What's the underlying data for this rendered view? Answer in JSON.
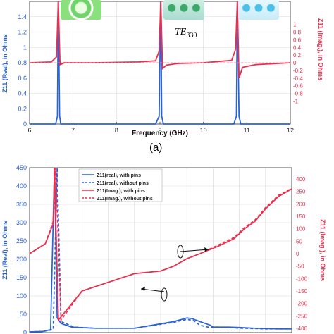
{
  "figure": {
    "panel_label": "(a)",
    "mode_label": "TE",
    "mode_subscript": "330"
  },
  "colors": {
    "blue": "#2a62d9",
    "red": "#e8304e",
    "pink": "#ff8aa6",
    "axis": "#444444",
    "grid": "#d8d8d8"
  },
  "chart_data": [
    {
      "type": "line",
      "xlabel": "Frequency (GHz)",
      "ylabel_left": "Z11 (Real), in Ohms",
      "ylabel_right": "Z11 (Imag.), in Ohms",
      "xlim": [
        6,
        12
      ],
      "ylim_left": [
        0,
        1.6
      ],
      "ylim_right": [
        -1.6,
        1.6
      ],
      "x_ticks": [
        "6",
        "7",
        "8",
        "9",
        "10",
        "11",
        "12"
      ],
      "y_left_ticks": [
        "0",
        "0.2",
        "0.4",
        "0.6",
        "0.8",
        "1",
        "1.2",
        "1.4"
      ],
      "y_right_ticks": [
        "1",
        "0.8",
        "0.6",
        "0.4",
        "0.2",
        "0",
        "-0.2",
        "-0.4",
        "-0.6",
        "-0.8",
        "-1"
      ],
      "series": [
        {
          "color": "blue",
          "axis": "left",
          "x": [
            6.0,
            6.6,
            6.64,
            6.66,
            6.69,
            6.72,
            7.2,
            8.9,
            8.98,
            9.02,
            9.04,
            9.08,
            10.7,
            10.76,
            10.78,
            10.82,
            10.86,
            12.0
          ],
          "y": [
            0.0,
            0.0,
            0.1,
            1.6,
            0.1,
            0.0,
            0.0,
            0.0,
            0.1,
            1.6,
            0.1,
            0.0,
            0.0,
            0.1,
            1.6,
            0.1,
            0.0,
            0.0
          ]
        },
        {
          "color": "red",
          "axis": "right",
          "x": [
            6.0,
            6.5,
            6.62,
            6.66,
            6.7,
            6.8,
            7.0,
            7.5,
            8.5,
            8.9,
            8.98,
            9.02,
            9.06,
            9.15,
            9.4,
            10.0,
            10.65,
            10.74,
            10.78,
            10.82,
            10.9,
            11.2,
            12.0
          ],
          "y": [
            0.0,
            0.02,
            0.15,
            1.6,
            -0.05,
            0.0,
            0.0,
            0.0,
            0.02,
            0.05,
            0.3,
            1.6,
            -0.15,
            -0.06,
            -0.02,
            0.0,
            0.06,
            0.35,
            1.6,
            -0.4,
            -0.12,
            -0.05,
            0.0
          ]
        }
      ]
    },
    {
      "type": "line",
      "ylabel_left": "Z11 (Real), in Ohms",
      "ylabel_right": "Z11 (Imag.), in Ohms",
      "ylim_left": [
        0,
        450
      ],
      "ylim_right": [
        -400,
        450
      ],
      "y_left_ticks": [
        "450",
        "400",
        "350",
        "300",
        "250",
        "200",
        "150",
        "100",
        "50",
        "0"
      ],
      "y_right_ticks": [
        "400",
        "250",
        "200",
        "150",
        "100",
        "50",
        "0",
        "-50",
        "-100",
        "-150",
        "-200",
        "-250",
        "-400"
      ],
      "legend_position": "top-left",
      "legend": [
        {
          "label": "Z11(real), with pins",
          "color": "blue",
          "style": "solid"
        },
        {
          "label": "Z11(real), without pins",
          "color": "blue",
          "style": "dashed"
        },
        {
          "label": "Z11(Imag.), with pins",
          "color": "red",
          "style": "solid"
        },
        {
          "label": "Z11(Imag.), without pins",
          "color": "red",
          "style": "dashed"
        }
      ],
      "series": [
        {
          "name": "Z11(real), with pins",
          "color": "blue",
          "style": "solid",
          "axis": "left",
          "x": [
            0,
            0.05,
            0.08,
            0.095,
            0.105,
            0.12,
            0.16,
            0.25,
            0.4,
            0.55,
            0.6,
            0.62,
            0.65,
            0.69,
            0.7,
            0.72,
            0.76,
            0.8,
            0.86,
            0.9,
            0.95,
            0.98,
            1.0
          ],
          "y": [
            2,
            3,
            8,
            450,
            40,
            25,
            15,
            12,
            12,
            30,
            40,
            38,
            30,
            20,
            15,
            15,
            15,
            14,
            12,
            11,
            10,
            10,
            10
          ]
        },
        {
          "name": "Z11(real), without pins",
          "color": "blue",
          "style": "dashed",
          "axis": "left",
          "x": [
            0,
            0.05,
            0.09,
            0.105,
            0.12,
            0.17,
            0.25,
            0.4,
            0.55,
            0.6,
            0.625,
            0.65,
            0.68,
            0.7,
            0.72,
            0.76,
            0.8,
            0.86,
            0.9,
            0.95,
            1.0
          ],
          "y": [
            2,
            3,
            8,
            450,
            30,
            15,
            12,
            12,
            28,
            36,
            33,
            20,
            15,
            15,
            15,
            14,
            12,
            11,
            10,
            10,
            10
          ]
        },
        {
          "name": "Z11(Imag.), with pins",
          "color": "red",
          "style": "solid",
          "axis": "right",
          "x": [
            0,
            0.06,
            0.09,
            0.095,
            0.11,
            0.2,
            0.4,
            0.5,
            0.55,
            0.6,
            0.65,
            0.72,
            0.78,
            0.82,
            0.86,
            0.9,
            0.95,
            1.0
          ],
          "y": [
            0,
            40,
            120,
            450,
            -300,
            -150,
            -80,
            -70,
            -50,
            -20,
            0,
            30,
            60,
            100,
            130,
            180,
            230,
            280
          ]
        },
        {
          "name": "Z11(Imag.), without pins",
          "color": "red",
          "style": "dashed",
          "axis": "right",
          "x": [
            0,
            0.06,
            0.09,
            0.1,
            0.12,
            0.2,
            0.4,
            0.5,
            0.55,
            0.6,
            0.65,
            0.72,
            0.78,
            0.82,
            0.86,
            0.9,
            0.95,
            1.0
          ],
          "y": [
            0,
            40,
            130,
            450,
            -300,
            -150,
            -80,
            -70,
            -50,
            -20,
            0,
            35,
            65,
            105,
            135,
            185,
            235,
            285
          ]
        }
      ]
    }
  ]
}
